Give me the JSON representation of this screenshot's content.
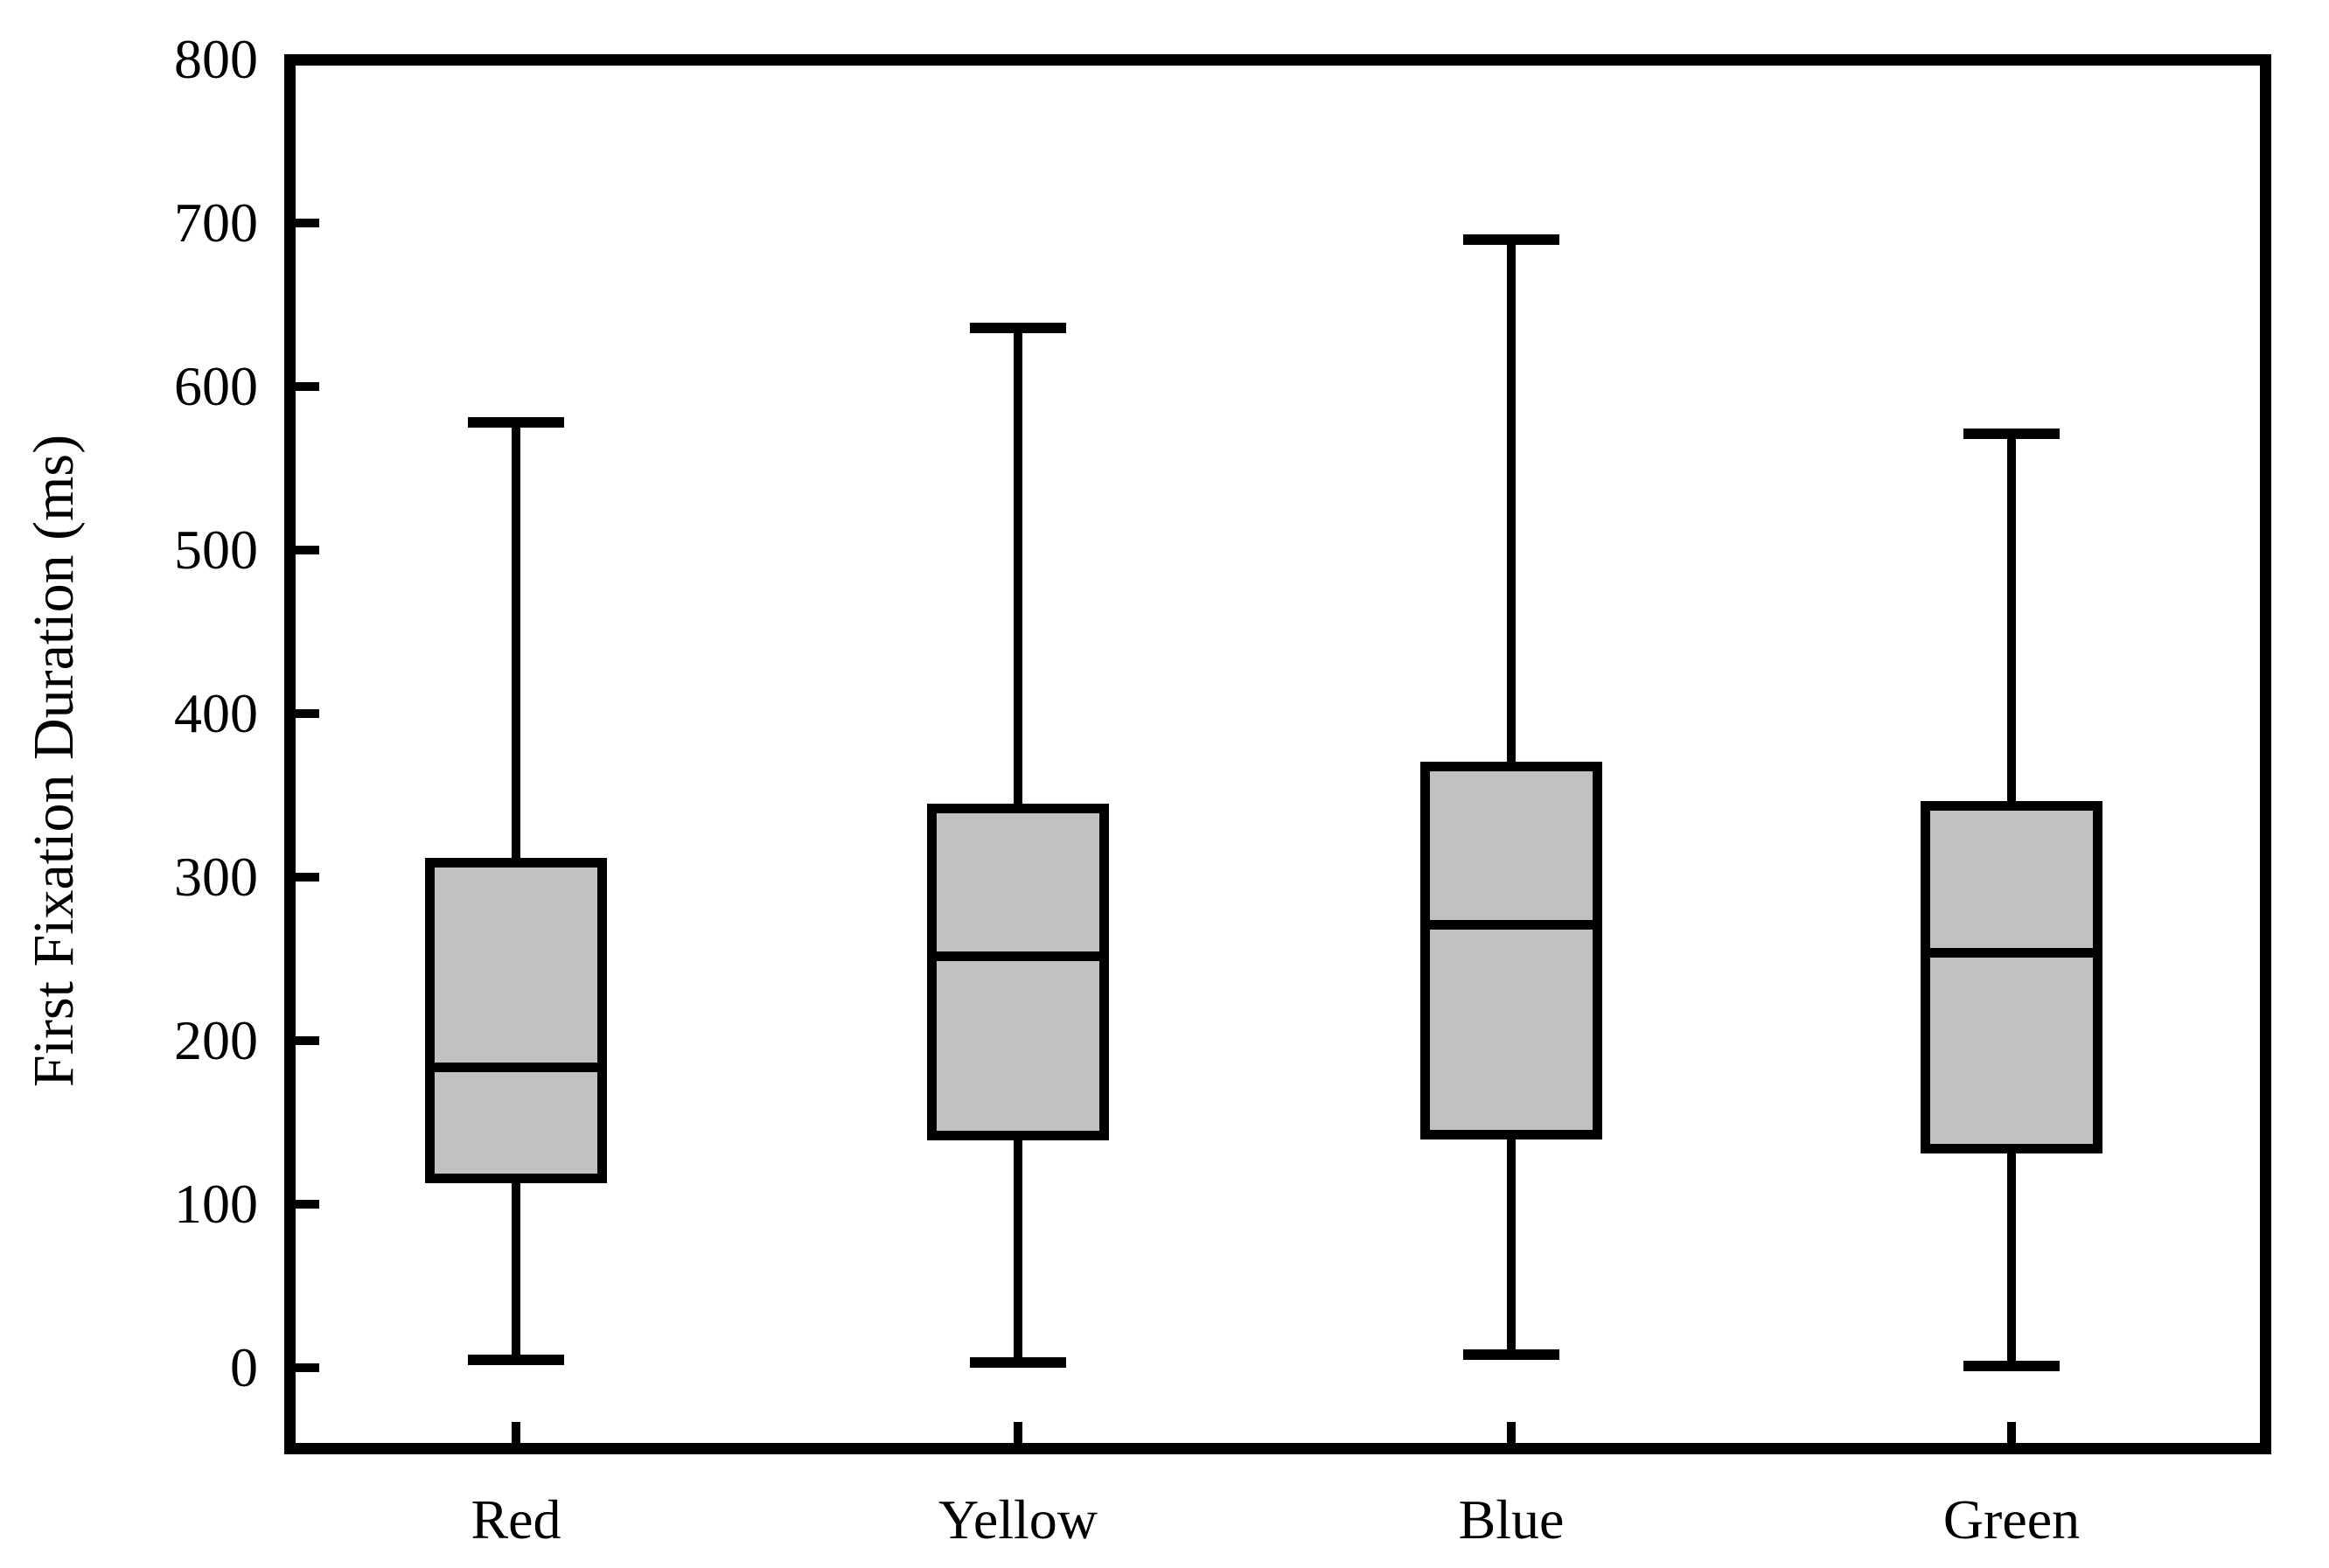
{
  "chart_data": {
    "type": "boxplot",
    "title": "",
    "xlabel": "",
    "ylabel": "First Fixation Duration (ms)",
    "ylim": [
      0,
      800
    ],
    "ytick_step": 100,
    "ytick_labels": [
      "0",
      "100",
      "200",
      "300",
      "400",
      "500",
      "600",
      "700",
      "800"
    ],
    "categories": [
      "Red",
      "Yellow",
      "Blue",
      "Green"
    ],
    "series": [
      {
        "name": "Red",
        "whisker_low": 5,
        "q1": 116,
        "median": 184,
        "q3": 309,
        "whisker_high": 578
      },
      {
        "name": "Yellow",
        "whisker_low": 3,
        "q1": 142,
        "median": 252,
        "q3": 342,
        "whisker_high": 636
      },
      {
        "name": "Blue",
        "whisker_low": 8,
        "q1": 143,
        "median": 271,
        "q3": 368,
        "whisker_high": 690
      },
      {
        "name": "Green",
        "whisker_low": 1,
        "q1": 134,
        "median": 254,
        "q3": 344,
        "whisker_high": 571
      }
    ],
    "grid": false,
    "legend": false,
    "box_fill_color": "#c1c1c1",
    "line_color": "#000000",
    "background_color": "#ffffff"
  }
}
